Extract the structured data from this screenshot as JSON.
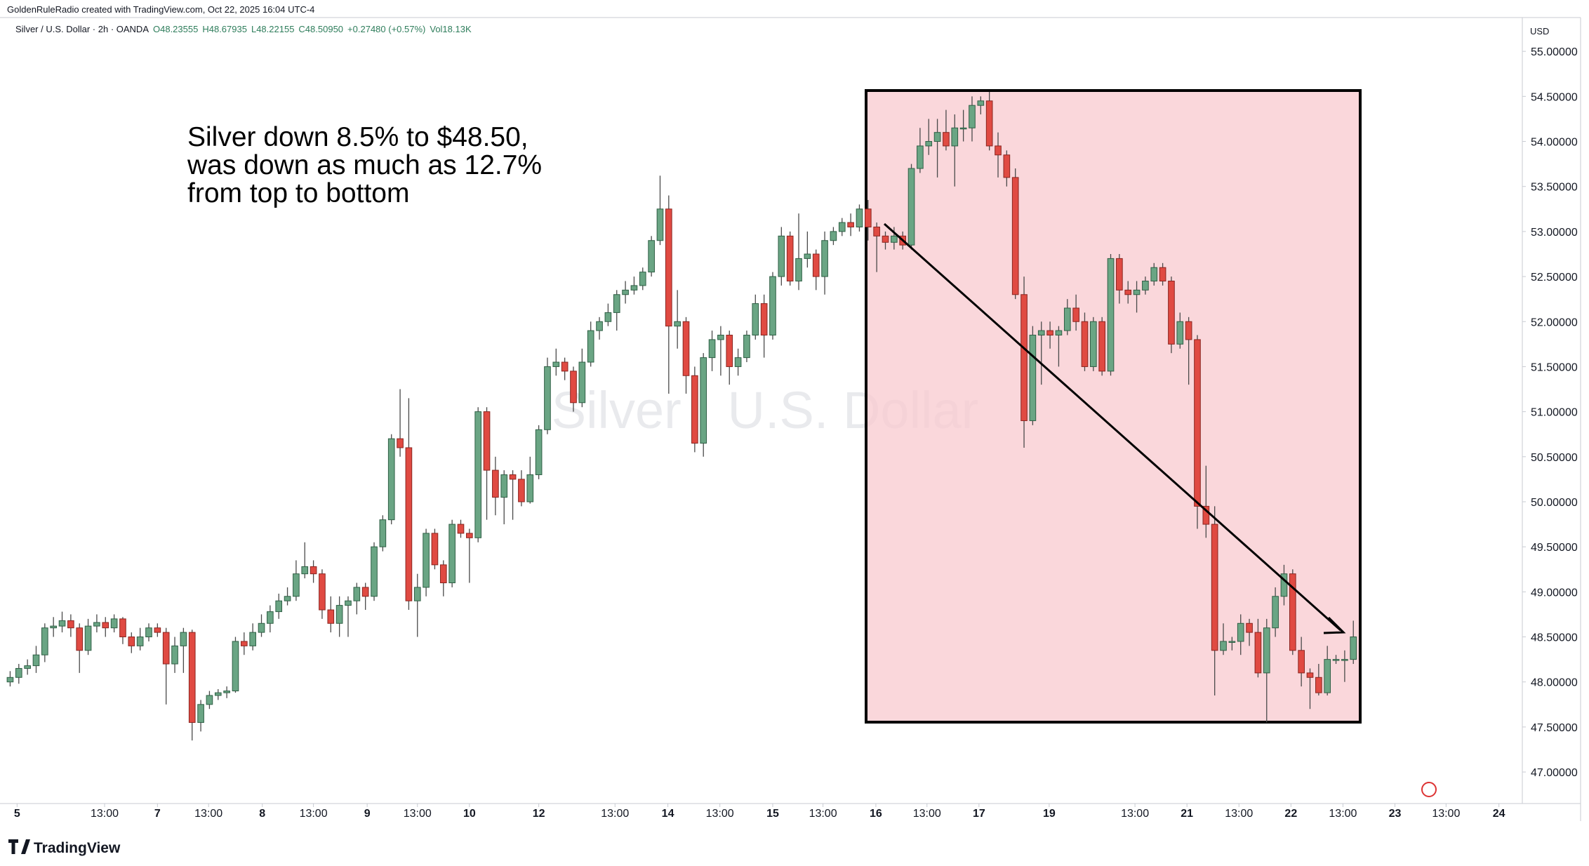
{
  "chart_data": {
    "type": "candlestick",
    "credit": "GoldenRuleRadio created with TradingView.com, Oct 22, 2025 16:04 UTC-4",
    "legend": "Silver / U.S. Dollar · 2h · OANDA",
    "readout": [
      "O48.23555",
      "H48.67935",
      "L48.22155",
      "C48.50950",
      "+0.27480 (+0.57%)",
      "Vol18.13K"
    ],
    "watermark": "Silver · U.S. Dollar",
    "annotation": [
      "Silver down 8.5% to $48.50,",
      "was down as much as 12.7%",
      "from top to bottom"
    ],
    "currency": "USD",
    "brand": "TradingView",
    "up_color": "#6aa584",
    "down_color": "#e04a42",
    "ylim": [
      46.65,
      55.57
    ],
    "yticks": [
      {
        "value": 47,
        "label": "47.00000"
      },
      {
        "value": 47.5,
        "label": "47.50000"
      },
      {
        "value": 48,
        "label": "48.00000"
      },
      {
        "value": 48.5,
        "label": "48.50000"
      },
      {
        "value": 49,
        "label": "49.00000"
      },
      {
        "value": 49.5,
        "label": "49.50000"
      },
      {
        "value": 50,
        "label": "50.00000"
      },
      {
        "value": 50.5,
        "label": "50.50000"
      },
      {
        "value": 51,
        "label": "51.00000"
      },
      {
        "value": 51.5,
        "label": "51.50000"
      },
      {
        "value": 52,
        "label": "52.00000"
      },
      {
        "value": 52.5,
        "label": "52.50000"
      },
      {
        "value": 53,
        "label": "53.00000"
      },
      {
        "value": 53.5,
        "label": "53.50000"
      },
      {
        "value": 54,
        "label": "54.00000"
      },
      {
        "value": 54.5,
        "label": "54.50000"
      },
      {
        "value": 55,
        "label": "55.00000"
      }
    ],
    "xlim": [
      -1.17,
      174.5
    ],
    "xticks": [
      {
        "value": 0.8,
        "label": "5"
      },
      {
        "value": 10.9,
        "label": "13:00"
      },
      {
        "value": 17,
        "label": "7"
      },
      {
        "value": 22.9,
        "label": "13:00"
      },
      {
        "value": 29.1,
        "label": "8"
      },
      {
        "value": 35,
        "label": "13:00"
      },
      {
        "value": 41.2,
        "label": "9"
      },
      {
        "value": 47,
        "label": "13:00"
      },
      {
        "value": 53,
        "label": "10"
      },
      {
        "value": 61,
        "label": "12"
      },
      {
        "value": 69.8,
        "label": "13:00"
      },
      {
        "value": 75.9,
        "label": "14"
      },
      {
        "value": 81.9,
        "label": "13:00"
      },
      {
        "value": 88,
        "label": "15"
      },
      {
        "value": 93.8,
        "label": "13:00"
      },
      {
        "value": 99.9,
        "label": "16"
      },
      {
        "value": 105.8,
        "label": "13:00"
      },
      {
        "value": 111.8,
        "label": "17"
      },
      {
        "value": 119.9,
        "label": "19"
      },
      {
        "value": 129.8,
        "label": "13:00"
      },
      {
        "value": 135.8,
        "label": "21"
      },
      {
        "value": 141.8,
        "label": "13:00"
      },
      {
        "value": 147.8,
        "label": "22"
      },
      {
        "value": 153.8,
        "label": "13:00"
      },
      {
        "value": 159.8,
        "label": "23"
      },
      {
        "value": 165.7,
        "label": "13:00"
      },
      {
        "value": 171.8,
        "label": "24"
      }
    ],
    "ohlc": [
      [
        48.0,
        48.12,
        47.95,
        48.05
      ],
      [
        48.05,
        48.2,
        47.98,
        48.15
      ],
      [
        48.15,
        48.25,
        48.08,
        48.18
      ],
      [
        48.18,
        48.4,
        48.1,
        48.3
      ],
      [
        48.3,
        48.65,
        48.22,
        48.6
      ],
      [
        48.6,
        48.72,
        48.5,
        48.62
      ],
      [
        48.62,
        48.78,
        48.55,
        48.68
      ],
      [
        48.68,
        48.75,
        48.5,
        48.6
      ],
      [
        48.6,
        48.65,
        48.1,
        48.35
      ],
      [
        48.35,
        48.7,
        48.3,
        48.62
      ],
      [
        48.62,
        48.75,
        48.55,
        48.66
      ],
      [
        48.66,
        48.72,
        48.5,
        48.6
      ],
      [
        48.6,
        48.75,
        48.55,
        48.7
      ],
      [
        48.7,
        48.72,
        48.42,
        48.5
      ],
      [
        48.5,
        48.55,
        48.32,
        48.4
      ],
      [
        48.4,
        48.6,
        48.35,
        48.5
      ],
      [
        48.5,
        48.65,
        48.45,
        48.6
      ],
      [
        48.6,
        48.65,
        48.5,
        48.55
      ],
      [
        48.55,
        48.6,
        47.75,
        48.2
      ],
      [
        48.2,
        48.5,
        48.1,
        48.4
      ],
      [
        48.4,
        48.6,
        48.1,
        48.55
      ],
      [
        48.55,
        48.58,
        47.35,
        47.55
      ],
      [
        47.55,
        47.8,
        47.45,
        47.75
      ],
      [
        47.75,
        47.9,
        47.7,
        47.85
      ],
      [
        47.85,
        47.92,
        47.8,
        47.88
      ],
      [
        47.88,
        47.95,
        47.82,
        47.9
      ],
      [
        47.9,
        48.5,
        47.88,
        48.45
      ],
      [
        48.45,
        48.55,
        48.3,
        48.4
      ],
      [
        48.4,
        48.65,
        48.35,
        48.55
      ],
      [
        48.55,
        48.75,
        48.5,
        48.65
      ],
      [
        48.65,
        48.85,
        48.55,
        48.78
      ],
      [
        48.78,
        48.98,
        48.7,
        48.9
      ],
      [
        48.9,
        49.05,
        48.85,
        48.95
      ],
      [
        48.95,
        49.35,
        48.9,
        49.2
      ],
      [
        49.2,
        49.55,
        49.15,
        49.28
      ],
      [
        49.28,
        49.35,
        49.1,
        49.2
      ],
      [
        49.2,
        49.25,
        48.7,
        48.8
      ],
      [
        48.8,
        48.95,
        48.55,
        48.65
      ],
      [
        48.65,
        48.95,
        48.5,
        48.85
      ],
      [
        48.85,
        48.95,
        48.5,
        48.9
      ],
      [
        48.9,
        49.1,
        48.75,
        49.05
      ],
      [
        49.05,
        49.1,
        48.8,
        48.95
      ],
      [
        48.95,
        49.55,
        48.9,
        49.5
      ],
      [
        49.5,
        49.85,
        49.45,
        49.8
      ],
      [
        49.8,
        50.75,
        49.75,
        50.7
      ],
      [
        50.7,
        51.25,
        50.5,
        50.6
      ],
      [
        50.6,
        51.15,
        48.8,
        48.9
      ],
      [
        48.9,
        49.2,
        48.5,
        49.05
      ],
      [
        49.05,
        49.7,
        48.95,
        49.65
      ],
      [
        49.65,
        49.7,
        49.25,
        49.3
      ],
      [
        49.3,
        49.35,
        48.95,
        49.1
      ],
      [
        49.1,
        49.8,
        49.05,
        49.75
      ],
      [
        49.75,
        49.8,
        49.6,
        49.65
      ],
      [
        49.65,
        49.7,
        49.1,
        49.6
      ],
      [
        49.6,
        51.05,
        49.55,
        51.0
      ],
      [
        51.0,
        51.05,
        49.8,
        50.35
      ],
      [
        50.35,
        50.5,
        49.85,
        50.05
      ],
      [
        50.05,
        50.35,
        49.75,
        50.3
      ],
      [
        50.3,
        50.35,
        49.8,
        50.25
      ],
      [
        50.25,
        50.35,
        49.95,
        50.0
      ],
      [
        50.0,
        50.5,
        49.98,
        50.3
      ],
      [
        50.3,
        50.85,
        50.25,
        50.8
      ],
      [
        50.8,
        51.6,
        50.75,
        51.5
      ],
      [
        51.5,
        51.7,
        51.4,
        51.55
      ],
      [
        51.55,
        51.6,
        51.35,
        51.45
      ],
      [
        51.45,
        51.5,
        51.0,
        51.1
      ],
      [
        51.1,
        51.7,
        51.05,
        51.55
      ],
      [
        51.55,
        52.0,
        51.5,
        51.9
      ],
      [
        51.9,
        52.05,
        51.8,
        52.0
      ],
      [
        52.0,
        52.2,
        51.95,
        52.1
      ],
      [
        52.1,
        52.35,
        51.9,
        52.3
      ],
      [
        52.3,
        52.45,
        52.2,
        52.35
      ],
      [
        52.35,
        52.5,
        52.3,
        52.4
      ],
      [
        52.4,
        52.6,
        52.35,
        52.55
      ],
      [
        52.55,
        52.95,
        52.5,
        52.9
      ],
      [
        52.9,
        53.62,
        52.85,
        53.25
      ],
      [
        53.25,
        53.4,
        51.2,
        51.95
      ],
      [
        51.95,
        52.35,
        51.7,
        52.0
      ],
      [
        52.0,
        52.05,
        51.2,
        51.4
      ],
      [
        51.4,
        51.5,
        50.55,
        50.65
      ],
      [
        50.65,
        51.65,
        50.5,
        51.6
      ],
      [
        51.6,
        51.9,
        51.45,
        51.8
      ],
      [
        51.8,
        51.95,
        51.4,
        51.85
      ],
      [
        51.85,
        51.9,
        51.3,
        51.5
      ],
      [
        51.5,
        51.7,
        51.4,
        51.6
      ],
      [
        51.6,
        51.9,
        51.55,
        51.85
      ],
      [
        51.85,
        52.3,
        51.8,
        52.2
      ],
      [
        52.2,
        52.3,
        51.6,
        51.85
      ],
      [
        51.85,
        52.55,
        51.8,
        52.5
      ],
      [
        52.5,
        53.05,
        52.4,
        52.95
      ],
      [
        52.95,
        53.0,
        52.4,
        52.45
      ],
      [
        52.45,
        53.2,
        52.35,
        52.7
      ],
      [
        52.7,
        53.0,
        52.6,
        52.75
      ],
      [
        52.75,
        52.8,
        52.35,
        52.5
      ],
      [
        52.5,
        53.0,
        52.3,
        52.9
      ],
      [
        52.9,
        53.05,
        52.85,
        53.0
      ],
      [
        53.0,
        53.15,
        52.95,
        53.1
      ],
      [
        53.1,
        53.2,
        52.95,
        53.05
      ],
      [
        53.05,
        53.3,
        53.0,
        53.25
      ],
      [
        53.25,
        53.35,
        52.9,
        53.05
      ],
      [
        53.05,
        53.1,
        52.55,
        52.95
      ],
      [
        52.95,
        53.0,
        52.8,
        52.88
      ],
      [
        52.88,
        53.05,
        52.8,
        52.95
      ],
      [
        52.95,
        53.0,
        52.8,
        52.85
      ],
      [
        52.85,
        53.75,
        52.8,
        53.7
      ],
      [
        53.7,
        54.15,
        53.65,
        53.95
      ],
      [
        53.95,
        54.25,
        53.85,
        54.0
      ],
      [
        54.0,
        54.25,
        53.6,
        54.1
      ],
      [
        54.1,
        54.35,
        53.9,
        53.95
      ],
      [
        53.95,
        54.3,
        53.5,
        54.15
      ],
      [
        54.15,
        54.35,
        54.0,
        54.15
      ],
      [
        54.15,
        54.5,
        54.0,
        54.4
      ],
      [
        54.4,
        54.5,
        54.3,
        54.45
      ],
      [
        54.45,
        54.55,
        53.9,
        53.95
      ],
      [
        53.95,
        54.1,
        53.6,
        53.85
      ],
      [
        53.85,
        53.9,
        53.5,
        53.6
      ],
      [
        53.6,
        53.7,
        52.25,
        52.3
      ],
      [
        52.3,
        52.5,
        50.6,
        50.9
      ],
      [
        50.9,
        51.95,
        50.85,
        51.85
      ],
      [
        51.85,
        52.0,
        51.3,
        51.9
      ],
      [
        51.9,
        52.0,
        51.7,
        51.85
      ],
      [
        51.85,
        51.95,
        51.5,
        51.9
      ],
      [
        51.9,
        52.25,
        51.85,
        52.15
      ],
      [
        52.15,
        52.3,
        51.9,
        52.0
      ],
      [
        52.0,
        52.1,
        51.45,
        51.5
      ],
      [
        51.5,
        52.05,
        51.45,
        52.0
      ],
      [
        52.0,
        52.05,
        51.4,
        51.45
      ],
      [
        51.45,
        52.75,
        51.4,
        52.7
      ],
      [
        52.7,
        52.75,
        52.2,
        52.35
      ],
      [
        52.35,
        52.45,
        52.2,
        52.3
      ],
      [
        52.3,
        52.45,
        52.1,
        52.35
      ],
      [
        52.35,
        52.5,
        52.3,
        52.45
      ],
      [
        52.45,
        52.65,
        52.4,
        52.6
      ],
      [
        52.6,
        52.65,
        52.4,
        52.45
      ],
      [
        52.45,
        52.5,
        51.65,
        51.75
      ],
      [
        51.75,
        52.1,
        51.7,
        52.0
      ],
      [
        52.0,
        52.05,
        51.3,
        51.8
      ],
      [
        51.8,
        51.85,
        49.7,
        49.95
      ],
      [
        49.95,
        50.4,
        49.6,
        49.75
      ],
      [
        49.75,
        49.95,
        47.85,
        48.35
      ],
      [
        48.35,
        48.65,
        48.3,
        48.45
      ],
      [
        48.45,
        48.5,
        48.35,
        48.45
      ],
      [
        48.45,
        48.75,
        48.3,
        48.65
      ],
      [
        48.65,
        48.7,
        48.4,
        48.55
      ],
      [
        48.55,
        48.7,
        48.05,
        48.1
      ],
      [
        48.1,
        48.7,
        47.55,
        48.6
      ],
      [
        48.6,
        49.05,
        48.5,
        48.95
      ],
      [
        48.95,
        49.3,
        48.85,
        49.2
      ],
      [
        49.2,
        49.25,
        48.3,
        48.35
      ],
      [
        48.35,
        48.5,
        47.95,
        48.1
      ],
      [
        48.1,
        48.15,
        47.7,
        48.05
      ],
      [
        48.05,
        48.2,
        47.85,
        47.88
      ],
      [
        47.88,
        48.4,
        47.85,
        48.25
      ],
      [
        48.25,
        48.3,
        48.2,
        48.25
      ],
      [
        48.25,
        48.35,
        48.0,
        48.25
      ],
      [
        48.25,
        48.68,
        48.2,
        48.5
      ]
    ]
  }
}
